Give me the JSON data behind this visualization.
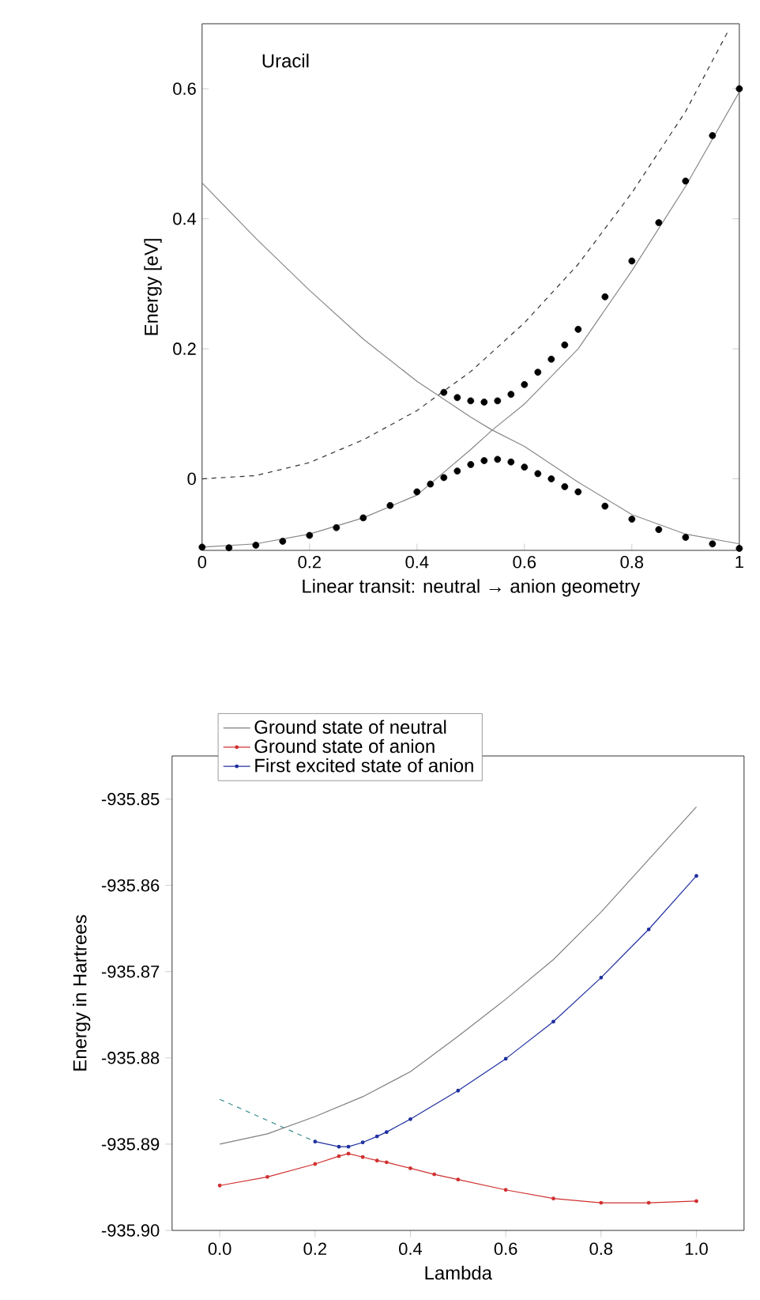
{
  "chart_data": [
    {
      "type": "line",
      "xlabel": "Linear transit: neutral → anion geometry",
      "ylabel": "Energy [eV]",
      "annotations": [
        "Uracil"
      ],
      "xlim": [
        0,
        1
      ],
      "ylim": [
        -0.11,
        0.7
      ],
      "xticks": [
        0,
        0.2,
        0.4,
        0.6,
        0.8,
        1
      ],
      "yticks": [
        0,
        0.2,
        0.4,
        0.6
      ],
      "series": [
        {
          "color": "#333333",
          "line_style": "dashed",
          "x": [
            0,
            0.1,
            0.2,
            0.3,
            0.4,
            0.45,
            0.5,
            0.6,
            0.7,
            0.8,
            0.9,
            0.98
          ],
          "values": [
            0,
            0.005,
            0.025,
            0.06,
            0.105,
            0.135,
            0.165,
            0.24,
            0.33,
            0.44,
            0.565,
            0.69
          ]
        },
        {
          "color": "#888888",
          "x": [
            0,
            0.1,
            0.2,
            0.3,
            0.4,
            0.5,
            0.54,
            0.6,
            0.7,
            0.8,
            0.9,
            1
          ],
          "values": [
            0.455,
            0.37,
            0.29,
            0.215,
            0.15,
            0.095,
            0.075,
            0.05,
            -0.005,
            -0.055,
            -0.085,
            -0.1
          ]
        },
        {
          "color": "#888888",
          "x": [
            0,
            0.1,
            0.2,
            0.3,
            0.4,
            0.5,
            0.54,
            0.6,
            0.7,
            0.8,
            0.9,
            1
          ],
          "values": [
            -0.105,
            -0.1,
            -0.085,
            -0.06,
            -0.025,
            0.045,
            0.075,
            0.115,
            0.2,
            0.32,
            0.45,
            0.595
          ]
        },
        {
          "type": "scatter",
          "marker": "circle",
          "color": "#000000",
          "x": [
            0.45,
            0.475,
            0.5,
            0.525,
            0.55,
            0.575,
            0.6,
            0.625,
            0.65,
            0.675,
            0.7,
            0.75,
            0.8,
            0.85,
            0.9,
            0.95,
            1
          ],
          "values": [
            0.133,
            0.125,
            0.12,
            0.118,
            0.12,
            0.13,
            0.145,
            0.164,
            0.184,
            0.206,
            0.23,
            0.28,
            0.335,
            0.394,
            0.458,
            0.528,
            0.6
          ]
        },
        {
          "type": "scatter",
          "marker": "circle",
          "color": "#000000",
          "x": [
            0,
            0.05,
            0.1,
            0.15,
            0.2,
            0.25,
            0.3,
            0.35,
            0.4,
            0.425,
            0.45,
            0.475,
            0.5,
            0.525,
            0.55,
            0.575,
            0.6,
            0.625,
            0.65,
            0.675,
            0.7,
            0.75,
            0.8,
            0.85,
            0.9,
            0.95,
            1
          ],
          "values": [
            -0.105,
            -0.106,
            -0.102,
            -0.096,
            -0.087,
            -0.075,
            -0.06,
            -0.041,
            -0.02,
            -0.008,
            0.002,
            0.012,
            0.022,
            0.028,
            0.03,
            0.026,
            0.018,
            0.008,
            0,
            -0.012,
            -0.02,
            -0.042,
            -0.062,
            -0.078,
            -0.09,
            -0.1,
            -0.107
          ]
        }
      ]
    },
    {
      "type": "line",
      "xlabel": "Lambda",
      "ylabel": "Energy in Hartrees",
      "legend": "top",
      "xlim": [
        -0.1,
        1.1
      ],
      "ylim": [
        -935.9,
        -935.845
      ],
      "xticks": [
        {
          "value": 0,
          "label": "0.0"
        },
        0.2,
        0.4,
        0.6,
        0.8,
        {
          "value": 1,
          "label": "1.0"
        }
      ],
      "yticks": [
        -935.85,
        -935.86,
        -935.87,
        -935.88,
        -935.89,
        {
          "value": -935.9,
          "label": "-935.90"
        }
      ],
      "series": [
        {
          "name": "Ground state of neutral",
          "color": "#808080",
          "x": [
            0,
            0.1,
            0.2,
            0.3,
            0.4,
            0.5,
            0.6,
            0.7,
            0.8,
            0.9,
            1
          ],
          "values": [
            -935.89,
            -935.8888,
            -935.8868,
            -935.8845,
            -935.8816,
            -935.8775,
            -935.8732,
            -935.8686,
            -935.8631,
            -935.857,
            -935.8509
          ]
        },
        {
          "name": "Ground state of anion",
          "color": "#d03030",
          "marker": "circle",
          "x": [
            0,
            0.1,
            0.2,
            0.25,
            0.27,
            0.3,
            0.33,
            0.35,
            0.4,
            0.45,
            0.5,
            0.6,
            0.7,
            0.8,
            0.9,
            1
          ],
          "values": [
            -935.8948,
            -935.8938,
            -935.8923,
            -935.8914,
            -935.8911,
            -935.8915,
            -935.8919,
            -935.8921,
            -935.8928,
            -935.8935,
            -935.8941,
            -935.8953,
            -935.8963,
            -935.8968,
            -935.8968,
            -935.8966
          ]
        },
        {
          "name": "First excited state of anion",
          "color": "#2030a0",
          "marker": "circle",
          "x": [
            0.2,
            0.25,
            0.27,
            0.3,
            0.33,
            0.35,
            0.4,
            0.5,
            0.6,
            0.7,
            0.8,
            0.9,
            1
          ],
          "values": [
            -935.8897,
            -935.8903,
            -935.8903,
            -935.8898,
            -935.8891,
            -935.8886,
            -935.8871,
            -935.8838,
            -935.8801,
            -935.8758,
            -935.8707,
            -935.8651,
            -935.8589
          ]
        },
        {
          "color": "#3a9090",
          "line_style": "dashed",
          "x": [
            0,
            0.2
          ],
          "values": [
            -935.8848,
            -935.8897
          ]
        }
      ]
    }
  ]
}
